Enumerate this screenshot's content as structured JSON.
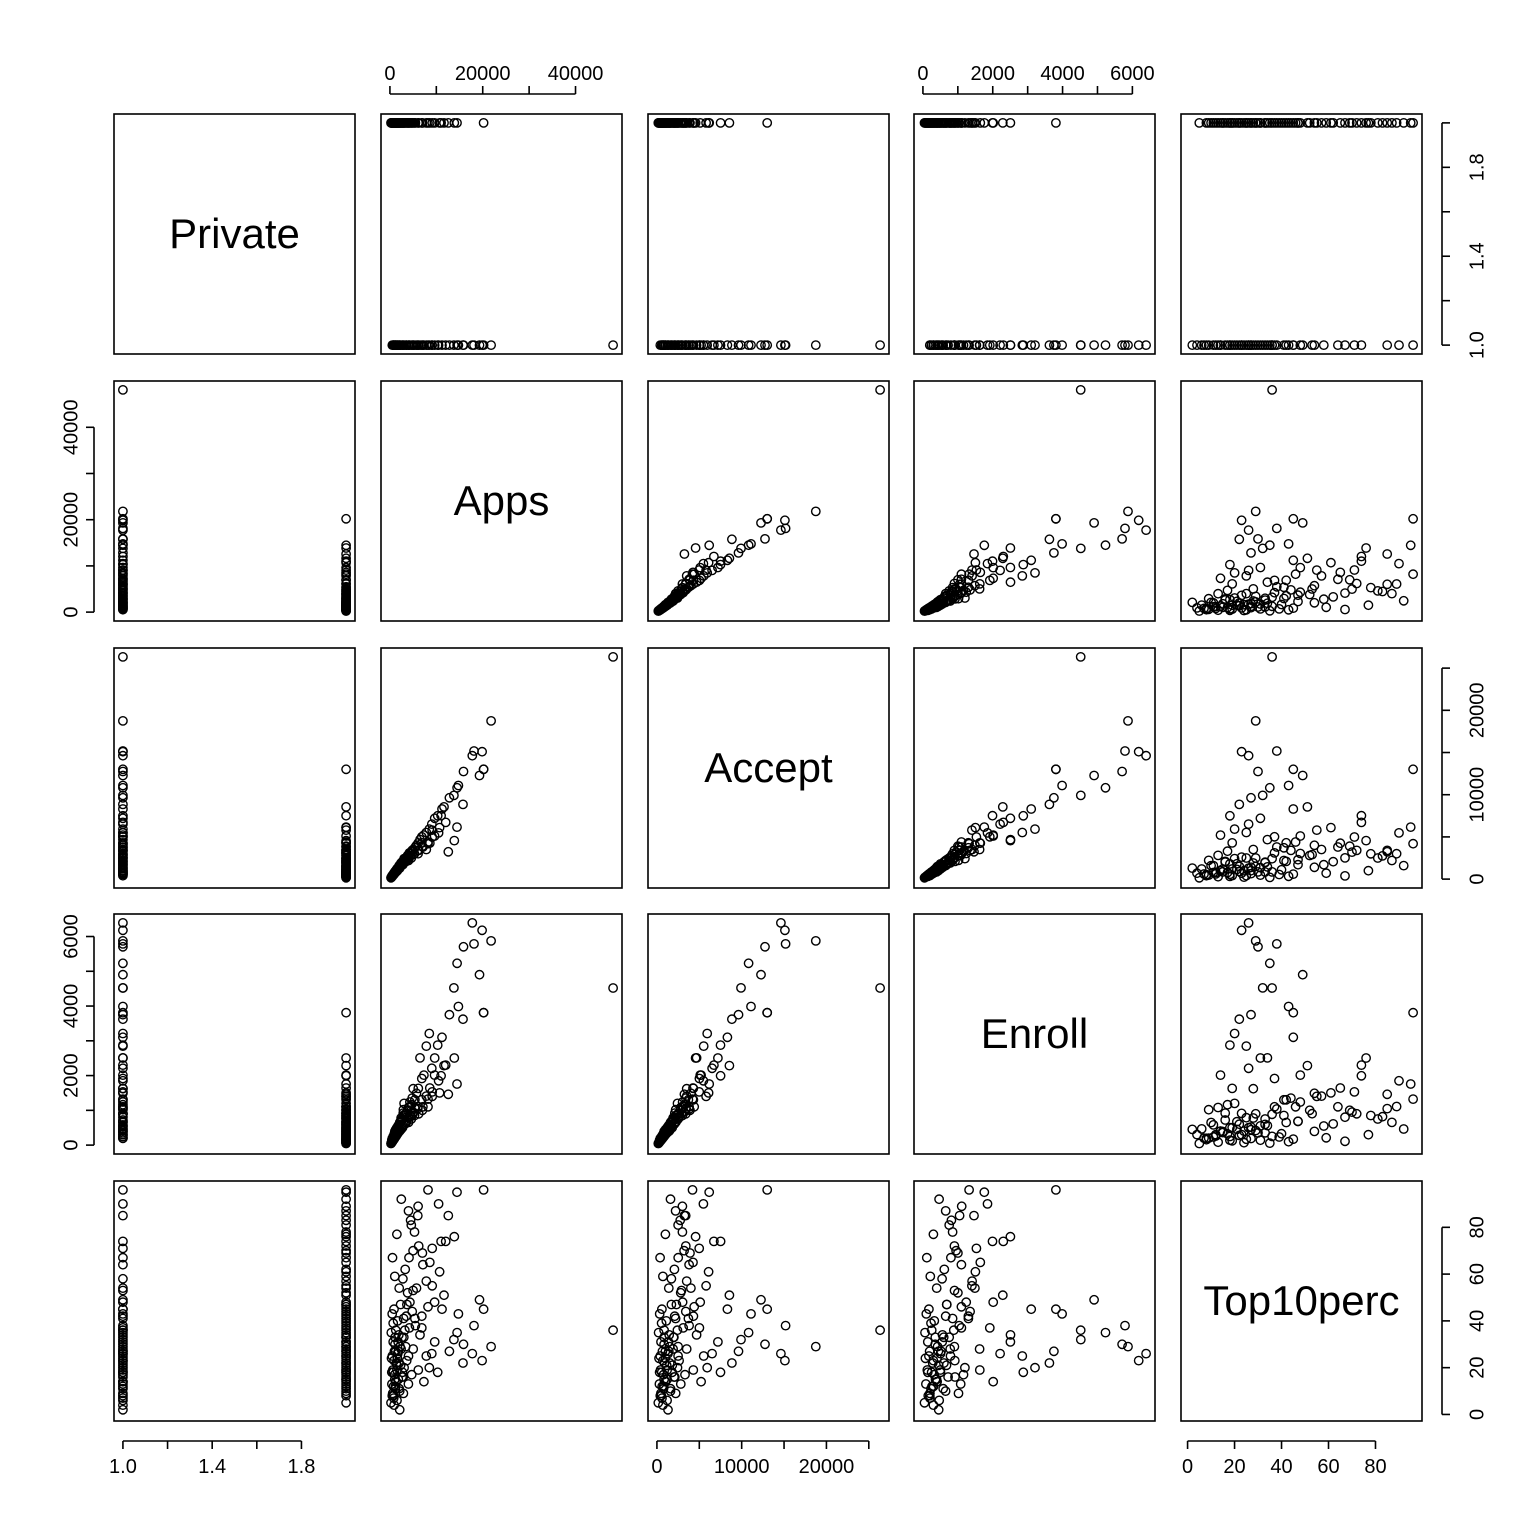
{
  "chart_data": {
    "type": "scatter",
    "subtype": "scatterplot-matrix",
    "variables": [
      "Private",
      "Apps",
      "Accept",
      "Enroll",
      "Top10perc"
    ],
    "ranges": {
      "Private": [
        1,
        2
      ],
      "Apps": [
        0,
        48094
      ],
      "Accept": [
        0,
        26330
      ],
      "Enroll": [
        0,
        6392
      ],
      "Top10perc": [
        1,
        96
      ]
    },
    "axes": {
      "top": [
        {
          "col": 1,
          "var": "Apps",
          "ticks": [
            0,
            10000,
            20000,
            30000,
            40000
          ],
          "labels": [
            "0",
            "",
            "20000",
            "",
            "40000"
          ]
        },
        {
          "col": 3,
          "var": "Enroll",
          "ticks": [
            0,
            1000,
            2000,
            3000,
            4000,
            5000,
            6000
          ],
          "labels": [
            "0",
            "",
            "2000",
            "",
            "4000",
            "",
            "6000"
          ]
        }
      ],
      "bottom": [
        {
          "col": 0,
          "var": "Private",
          "ticks": [
            1.0,
            1.2,
            1.4,
            1.6,
            1.8
          ],
          "labels": [
            "1.0",
            "",
            "1.4",
            "",
            "1.8"
          ]
        },
        {
          "col": 2,
          "var": "Accept",
          "ticks": [
            0,
            5000,
            10000,
            15000,
            20000,
            25000
          ],
          "labels": [
            "0",
            "",
            "10000",
            "",
            "20000",
            ""
          ]
        },
        {
          "col": 4,
          "var": "Top10perc",
          "ticks": [
            0,
            20,
            40,
            60,
            80
          ],
          "labels": [
            "0",
            "20",
            "40",
            "60",
            "80"
          ]
        }
      ],
      "left": [
        {
          "row": 1,
          "var": "Apps",
          "ticks": [
            0,
            10000,
            20000,
            30000,
            40000
          ],
          "labels": [
            "0",
            "",
            "20000",
            "",
            "40000"
          ]
        },
        {
          "row": 3,
          "var": "Enroll",
          "ticks": [
            0,
            1000,
            2000,
            3000,
            4000,
            5000,
            6000
          ],
          "labels": [
            "0",
            "",
            "2000",
            "",
            "4000",
            "",
            "6000"
          ]
        }
      ],
      "right": [
        {
          "row": 0,
          "var": "Private",
          "ticks": [
            1.0,
            1.2,
            1.4,
            1.6,
            1.8,
            2.0
          ],
          "labels": [
            "1.0",
            "",
            "1.4",
            "",
            "1.8",
            ""
          ]
        },
        {
          "row": 2,
          "var": "Accept",
          "ticks": [
            0,
            5000,
            10000,
            15000,
            20000,
            25000
          ],
          "labels": [
            "0",
            "",
            "10000",
            "",
            "20000",
            ""
          ]
        },
        {
          "row": 4,
          "var": "Top10perc",
          "ticks": [
            0,
            20,
            40,
            60,
            80
          ],
          "labels": [
            "0",
            "20",
            "40",
            "60",
            "80"
          ]
        }
      ]
    },
    "columns": [
      "Private",
      "Apps",
      "Accept",
      "Enroll",
      "Top10perc"
    ],
    "points": [
      [
        1,
        48094,
        26330,
        4520,
        36
      ],
      [
        1,
        21804,
        18744,
        5874,
        29
      ],
      [
        1,
        20192,
        13007,
        3810,
        45
      ],
      [
        1,
        19873,
        15096,
        6180,
        23
      ],
      [
        1,
        19315,
        12278,
        4903,
        49
      ],
      [
        1,
        18114,
        15182,
        5789,
        38
      ],
      [
        1,
        17747,
        14626,
        6392,
        26
      ],
      [
        1,
        15849,
        12751,
        5705,
        30
      ],
      [
        1,
        15760,
        8847,
        3622,
        22
      ],
      [
        1,
        14752,
        11096,
        3986,
        43
      ],
      [
        1,
        14474,
        10822,
        5231,
        35
      ],
      [
        1,
        13789,
        9923,
        4521,
        32
      ],
      [
        1,
        12810,
        9631,
        3751,
        27
      ],
      [
        1,
        11220,
        8310,
        3102,
        45
      ],
      [
        1,
        10289,
        7502,
        2876,
        18
      ],
      [
        1,
        9652,
        7200,
        2505,
        31
      ],
      [
        1,
        9031,
        6513,
        2210,
        26
      ],
      [
        1,
        8477,
        5927,
        3211,
        20
      ],
      [
        1,
        7836,
        5520,
        2847,
        25
      ],
      [
        1,
        7313,
        5214,
        2014,
        14
      ],
      [
        1,
        6873,
        5011,
        1917,
        37
      ],
      [
        1,
        6475,
        4683,
        2509,
        34
      ],
      [
        1,
        6116,
        4296,
        1630,
        19
      ],
      [
        1,
        5721,
        4008,
        1490,
        54
      ],
      [
        1,
        5374,
        3712,
        1304,
        41
      ],
      [
        1,
        5024,
        3508,
        1622,
        28
      ],
      [
        1,
        4702,
        3311,
        1163,
        17
      ],
      [
        1,
        4306,
        3032,
        1240,
        48
      ],
      [
        1,
        3987,
        2812,
        1081,
        13
      ],
      [
        1,
        3612,
        2611,
        912,
        23
      ],
      [
        1,
        3216,
        2417,
        885,
        36
      ],
      [
        1,
        2905,
        2213,
        1018,
        9
      ],
      [
        1,
        2613,
        2011,
        722,
        16
      ],
      [
        1,
        2311,
        1818,
        674,
        21
      ],
      [
        1,
        2005,
        1602,
        581,
        11
      ],
      [
        1,
        1812,
        1404,
        522,
        27
      ],
      [
        1,
        1524,
        1201,
        466,
        6
      ],
      [
        1,
        1302,
        1012,
        403,
        14
      ],
      [
        1,
        1103,
        842,
        355,
        33
      ],
      [
        1,
        905,
        701,
        301,
        4
      ],
      [
        1,
        702,
        568,
        249,
        18
      ],
      [
        1,
        511,
        402,
        196,
        8
      ],
      [
        1,
        12031,
        6720,
        2302,
        74
      ],
      [
        1,
        10501,
        5480,
        1851,
        90
      ],
      [
        1,
        9105,
        4990,
        1532,
        71
      ],
      [
        1,
        8203,
        4201,
        1323,
        96
      ],
      [
        1,
        7104,
        3802,
        1102,
        64
      ],
      [
        1,
        6012,
        3401,
        1051,
        85
      ],
      [
        1,
        5003,
        2900,
        903,
        53
      ],
      [
        1,
        4112,
        2512,
        802,
        67
      ],
      [
        1,
        3506,
        2103,
        651,
        42
      ],
      [
        1,
        2802,
        1705,
        550,
        58
      ],
      [
        1,
        2103,
        1306,
        452,
        2
      ],
      [
        1,
        1605,
        1002,
        402,
        24
      ],
      [
        1,
        1203,
        801,
        303,
        12
      ],
      [
        1,
        803,
        602,
        203,
        7
      ],
      [
        2,
        20192,
        13007,
        3810,
        96
      ],
      [
        2,
        14463,
        6166,
        1757,
        95
      ],
      [
        2,
        13865,
        4563,
        2505,
        76
      ],
      [
        2,
        12586,
        3239,
        1462,
        85
      ],
      [
        2,
        11651,
        8551,
        2287,
        51
      ],
      [
        2,
        11023,
        7511,
        1994,
        74
      ],
      [
        2,
        9631,
        5104,
        2013,
        48
      ],
      [
        2,
        8587,
        4251,
        1643,
        65
      ],
      [
        2,
        7842,
        3512,
        1410,
        57
      ],
      [
        2,
        6875,
        4301,
        1304,
        42
      ],
      [
        2,
        6075,
        3011,
        1110,
        89
      ],
      [
        2,
        5482,
        3800,
        1040,
        38
      ],
      [
        2,
        4987,
        3203,
        950,
        70
      ],
      [
        2,
        4462,
        2750,
        816,
        83
      ],
      [
        2,
        4010,
        2502,
        789,
        25
      ],
      [
        2,
        3652,
        2298,
        684,
        47
      ],
      [
        2,
        3302,
        2061,
        611,
        62
      ],
      [
        2,
        2981,
        2001,
        595,
        33
      ],
      [
        2,
        2702,
        1801,
        502,
        18
      ],
      [
        2,
        2450,
        1602,
        462,
        92
      ],
      [
        2,
        2201,
        1501,
        420,
        29
      ],
      [
        2,
        2005,
        1403,
        395,
        54
      ],
      [
        2,
        1801,
        1201,
        360,
        15
      ],
      [
        2,
        1657,
        1102,
        327,
        40
      ],
      [
        2,
        1502,
        1002,
        300,
        77
      ],
      [
        2,
        1386,
        901,
        280,
        22
      ],
      [
        2,
        1260,
        852,
        251,
        36
      ],
      [
        2,
        1150,
        780,
        232,
        11
      ],
      [
        2,
        1050,
        700,
        211,
        59
      ],
      [
        2,
        960,
        650,
        190,
        27
      ],
      [
        2,
        870,
        590,
        172,
        45
      ],
      [
        2,
        790,
        520,
        155,
        8
      ],
      [
        2,
        702,
        480,
        140,
        31
      ],
      [
        2,
        630,
        420,
        125,
        19
      ],
      [
        2,
        560,
        380,
        111,
        67
      ],
      [
        2,
        490,
        330,
        98,
        43
      ],
      [
        2,
        420,
        290,
        84,
        13
      ],
      [
        2,
        350,
        240,
        70,
        24
      ],
      [
        2,
        290,
        200,
        58,
        35
      ],
      [
        2,
        230,
        160,
        45,
        5
      ],
      [
        2,
        3051,
        2430,
        1201,
        20
      ],
      [
        2,
        2852,
        2104,
        920,
        16
      ],
      [
        2,
        2402,
        1905,
        780,
        28
      ],
      [
        2,
        2103,
        1602,
        650,
        10
      ],
      [
        2,
        1902,
        1451,
        560,
        34
      ],
      [
        2,
        1703,
        1302,
        502,
        26
      ],
      [
        2,
        1501,
        1153,
        451,
        21
      ],
      [
        2,
        1302,
        1001,
        402,
        14
      ],
      [
        2,
        1102,
        852,
        352,
        30
      ],
      [
        2,
        1001,
        781,
        322,
        17
      ],
      [
        2,
        902,
        701,
        301,
        23
      ],
      [
        2,
        802,
        621,
        261,
        12
      ],
      [
        2,
        701,
        551,
        232,
        39
      ],
      [
        2,
        601,
        471,
        201,
        9
      ],
      [
        2,
        501,
        402,
        171,
        25
      ],
      [
        2,
        402,
        321,
        141,
        18
      ],
      [
        2,
        4801,
        3402,
        1351,
        44
      ],
      [
        2,
        4202,
        3101,
        1101,
        37
      ],
      [
        2,
        3802,
        2801,
        1002,
        52
      ],
      [
        2,
        3402,
        2502,
        901,
        29
      ],
      [
        2,
        2952,
        2202,
        851,
        41
      ],
      [
        2,
        2602,
        1952,
        752,
        33
      ],
      [
        2,
        2302,
        1702,
        682,
        47
      ],
      [
        2,
        2002,
        1502,
        602,
        22
      ],
      [
        2,
        1752,
        1352,
        552,
        31
      ],
      [
        2,
        1502,
        1202,
        501,
        19
      ],
      [
        2,
        1252,
        1002,
        442,
        27
      ],
      [
        2,
        1052,
        852,
        392,
        15
      ],
      [
        2,
        10701,
        6101,
        1502,
        61
      ],
      [
        2,
        9102,
        5802,
        1402,
        55
      ],
      [
        2,
        8201,
        4402,
        1102,
        46
      ],
      [
        2,
        7002,
        3902,
        1002,
        69
      ],
      [
        2,
        6201,
        3402,
        902,
        72
      ],
      [
        2,
        5301,
        3001,
        851,
        78
      ],
      [
        2,
        4601,
        2501,
        752,
        81
      ],
      [
        2,
        4001,
        2201,
        652,
        87
      ]
    ]
  }
}
